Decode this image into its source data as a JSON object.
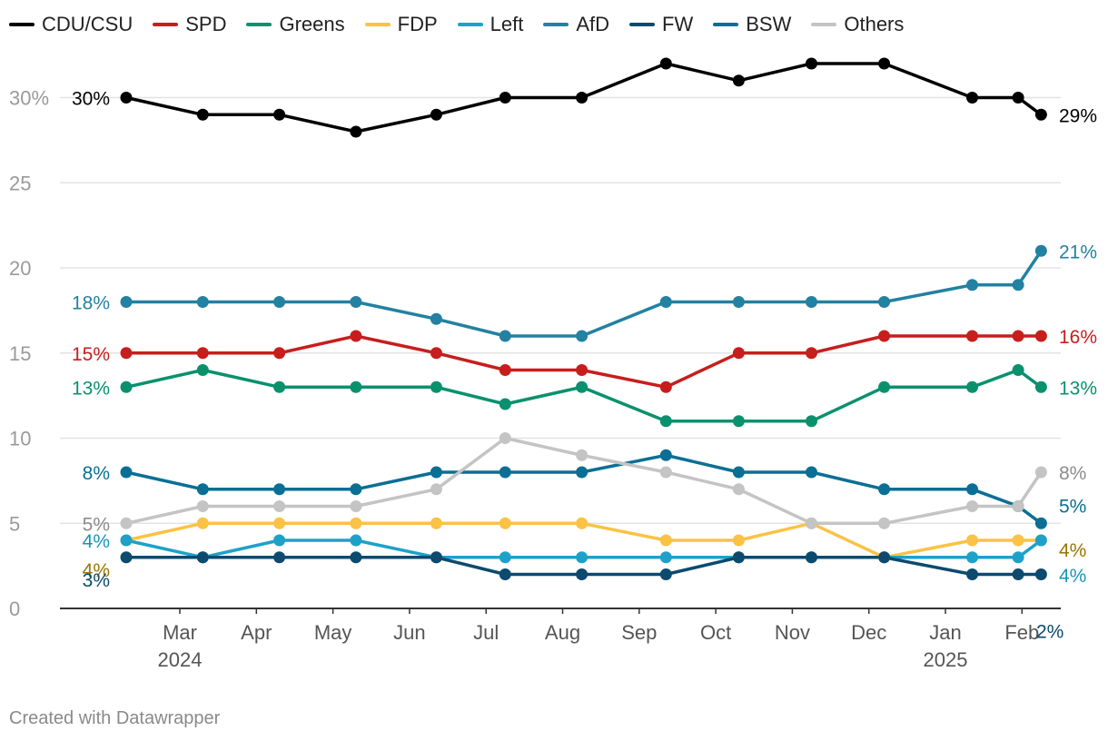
{
  "chart_data": {
    "type": "line",
    "credit": "Created with Datawrapper",
    "ylim": [
      0,
      32
    ],
    "y_ticks": [
      {
        "value": 0,
        "label": "0"
      },
      {
        "value": 5,
        "label": "5"
      },
      {
        "value": 10,
        "label": "10"
      },
      {
        "value": 15,
        "label": "15"
      },
      {
        "value": 20,
        "label": "20"
      },
      {
        "value": 25,
        "label": "25"
      },
      {
        "value": 30,
        "label": "30%"
      }
    ],
    "x_ticks": [
      {
        "pos": 0.7,
        "label": "Mar",
        "sub": "2024"
      },
      {
        "pos": 1.7,
        "label": "Apr",
        "sub": ""
      },
      {
        "pos": 2.7,
        "label": "May",
        "sub": ""
      },
      {
        "pos": 3.7,
        "label": "Jun",
        "sub": ""
      },
      {
        "pos": 4.7,
        "label": "Jul",
        "sub": ""
      },
      {
        "pos": 5.7,
        "label": "Aug",
        "sub": ""
      },
      {
        "pos": 6.7,
        "label": "Sep",
        "sub": ""
      },
      {
        "pos": 7.7,
        "label": "Oct",
        "sub": ""
      },
      {
        "pos": 8.7,
        "label": "Nov",
        "sub": ""
      },
      {
        "pos": 9.7,
        "label": "Dec",
        "sub": ""
      },
      {
        "pos": 10.7,
        "label": "Jan",
        "sub": "2025"
      },
      {
        "pos": 11.7,
        "label": "Feb",
        "sub": ""
      }
    ],
    "x": [
      0,
      1.0,
      2.0,
      3.0,
      4.05,
      4.95,
      5.95,
      7.05,
      8.0,
      8.95,
      9.9,
      11.05,
      11.65,
      11.95
    ],
    "x_label_note": "x positions in months from early Feb 2024",
    "series": [
      {
        "name": "CDU/CSU",
        "color": "#000000",
        "label_color": "#000000",
        "start_label": "30%",
        "end_label": "29%",
        "values": [
          30,
          29,
          29,
          28,
          29,
          30,
          30,
          32,
          31,
          32,
          32,
          30,
          30,
          29
        ]
      },
      {
        "name": "SPD",
        "color": "#c71e1d",
        "label_color": "#c71e1d",
        "start_label": "15%",
        "end_label": "16%",
        "values": [
          15,
          15,
          15,
          16,
          15,
          14,
          14,
          13,
          15,
          15,
          16,
          16,
          16,
          16
        ]
      },
      {
        "name": "Greens",
        "color": "#09916e",
        "label_color": "#09916e",
        "start_label": "13%",
        "end_label": "13%",
        "values": [
          13,
          14,
          13,
          13,
          13,
          12,
          13,
          11,
          11,
          11,
          13,
          13,
          14,
          13
        ]
      },
      {
        "name": "FDP",
        "color": "#fbc244",
        "label_color": "#9a7400",
        "start_label": "4%",
        "end_label": "4%",
        "values": [
          4,
          5,
          5,
          5,
          5,
          5,
          5,
          4,
          4,
          5,
          3,
          4,
          4,
          4
        ]
      },
      {
        "name": "Left",
        "color": "#1ea1c9",
        "label_color": "#1a93b8",
        "start_label": "4%",
        "end_label": "4%",
        "values": [
          4,
          3,
          4,
          4,
          3,
          3,
          3,
          3,
          3,
          3,
          3,
          3,
          3,
          4
        ]
      },
      {
        "name": "AfD",
        "color": "#2381a1",
        "label_color": "#2381a1",
        "start_label": "18%",
        "end_label": "21%",
        "values": [
          18,
          18,
          18,
          18,
          17,
          16,
          16,
          18,
          18,
          18,
          18,
          19,
          19,
          21
        ]
      },
      {
        "name": "FW",
        "color": "#0c4a6e",
        "label_color": "#0c4a6e",
        "start_label": "3%",
        "end_label": "2%",
        "values": [
          3,
          3,
          3,
          3,
          3,
          2,
          2,
          2,
          3,
          3,
          3,
          2,
          2,
          2
        ]
      },
      {
        "name": "BSW",
        "color": "#0a6f94",
        "label_color": "#0a6f94",
        "start_label": "8%",
        "end_label": "5%",
        "values": [
          8,
          7,
          7,
          7,
          8,
          8,
          8,
          9,
          8,
          8,
          7,
          7,
          6,
          5
        ]
      },
      {
        "name": "Others",
        "color": "#c4c4c4",
        "label_color": "#8c8c8c",
        "start_label": "5%",
        "end_label": "8%",
        "values": [
          5,
          6,
          6,
          6,
          7,
          10,
          9,
          8,
          7,
          5,
          5,
          6,
          6,
          8
        ]
      }
    ]
  }
}
